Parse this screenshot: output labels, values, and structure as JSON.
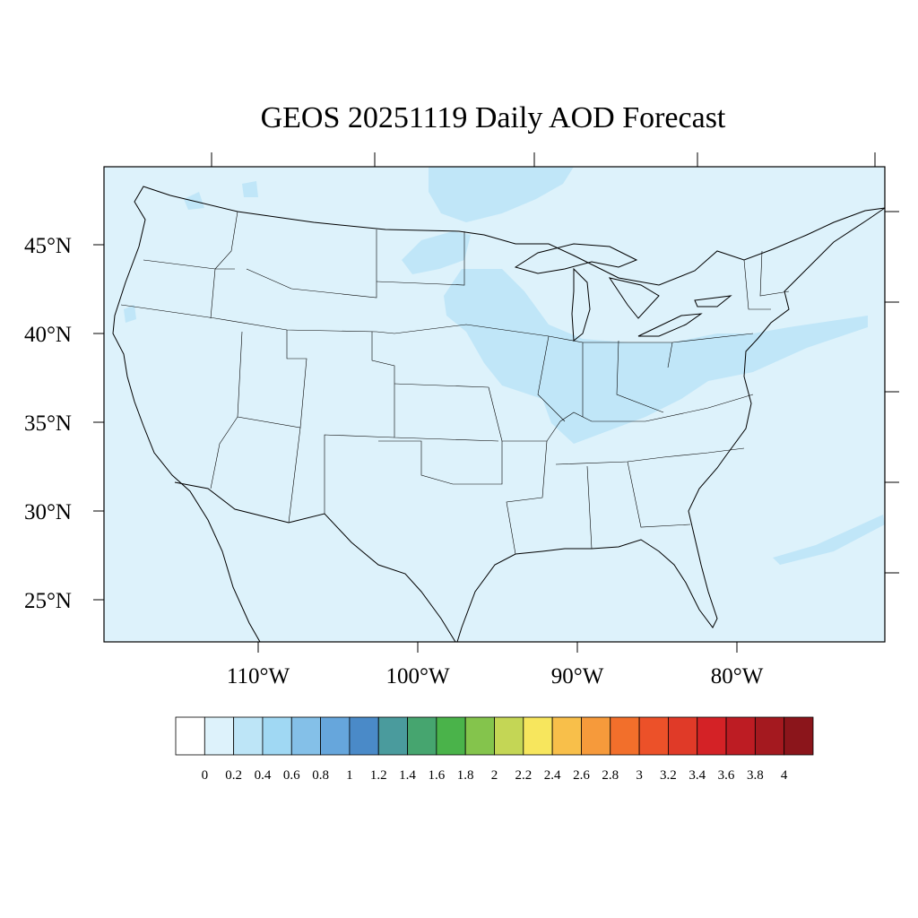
{
  "title": "GEOS 20251119 Daily AOD Forecast",
  "map": {
    "region": "contiguous-us",
    "background_color": "#ddf2fb",
    "plume_color": "#c0e6f8",
    "plume_strong_color": "#a8dcf4",
    "border_color": "#000000"
  },
  "lat_labels": [
    "45°N",
    "40°N",
    "35°N",
    "30°N",
    "25°N"
  ],
  "lon_labels": [
    "110°W",
    "100°W",
    "90°W",
    "80°W"
  ],
  "colorbar": {
    "labels": [
      "0",
      "0.2",
      "0.4",
      "0.6",
      "0.8",
      "1",
      "1.2",
      "1.4",
      "1.6",
      "1.8",
      "2",
      "2.2",
      "2.4",
      "2.6",
      "2.8",
      "3",
      "3.2",
      "3.4",
      "3.6",
      "3.8",
      "4"
    ],
    "colors": [
      "#ffffff",
      "#ddf2fb",
      "#bde5f7",
      "#a0d8f3",
      "#84c0e8",
      "#66a6dc",
      "#4a8ac8",
      "#4a9b9d",
      "#46a56f",
      "#4ab34a",
      "#84c44c",
      "#c4d655",
      "#f7e65d",
      "#f8bf4a",
      "#f69a3b",
      "#f26f2b",
      "#ec5129",
      "#e03a28",
      "#d42226",
      "#bd1c23",
      "#a4191f",
      "#8b151b"
    ]
  }
}
